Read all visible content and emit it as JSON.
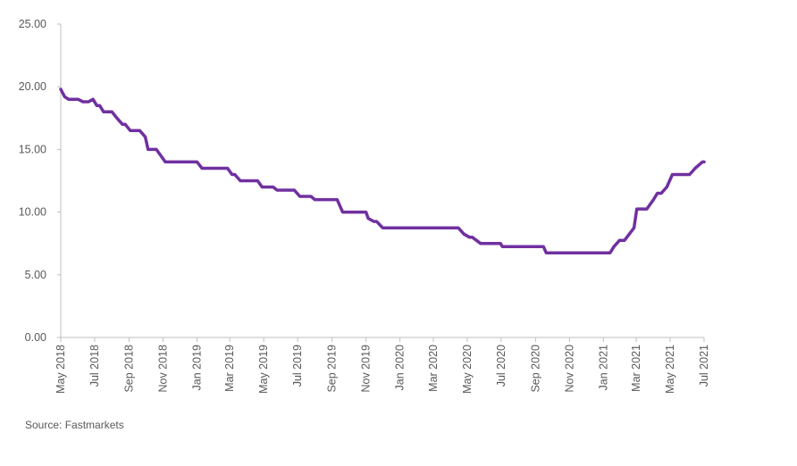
{
  "chart_data": {
    "type": "line",
    "title": "",
    "xlabel": "",
    "ylabel": "",
    "ylim": [
      0,
      25
    ],
    "y_ticks": [
      "0.00",
      "5.00",
      "10.00",
      "15.00",
      "20.00",
      "25.00"
    ],
    "x_tick_labels": [
      "May 2018",
      "Jul 2018",
      "Sep 2018",
      "Nov 2018",
      "Jan 2019",
      "Mar 2019",
      "May 2019",
      "Jul 2019",
      "Sep 2019",
      "Nov 2019",
      "Jan 2020",
      "Mar 2020",
      "May 2020",
      "Jul 2020",
      "Sep 2020",
      "Nov 2020",
      "Jan 2021",
      "Mar 2021",
      "May 2021",
      "Jul 2021"
    ],
    "grid": false,
    "line_color": "#7030a0",
    "series": [
      {
        "x": [
          "2018-05-01",
          "2018-05-08",
          "2018-05-15",
          "2018-06-01",
          "2018-06-10",
          "2018-06-20",
          "2018-06-28",
          "2018-07-05",
          "2018-07-10",
          "2018-07-17",
          "2018-07-20",
          "2018-08-01",
          "2018-08-10",
          "2018-08-20",
          "2018-08-25",
          "2018-09-03",
          "2018-09-10",
          "2018-09-20",
          "2018-09-30",
          "2018-10-05",
          "2018-10-12",
          "2018-10-20",
          "2018-10-28",
          "2018-11-05",
          "2018-11-15",
          "2018-12-01",
          "2018-12-15",
          "2019-01-01",
          "2019-01-10",
          "2019-02-01",
          "2019-02-10",
          "2019-02-25",
          "2019-03-05",
          "2019-03-10",
          "2019-03-20",
          "2019-04-10",
          "2019-04-20",
          "2019-04-28",
          "2019-05-10",
          "2019-05-18",
          "2019-05-25",
          "2019-06-20",
          "2019-06-25",
          "2019-07-05",
          "2019-07-15",
          "2019-07-25",
          "2019-08-01",
          "2019-08-20",
          "2019-09-05",
          "2019-09-10",
          "2019-09-20",
          "2019-10-25",
          "2019-11-01",
          "2019-11-05",
          "2019-11-15",
          "2019-11-20",
          "2019-12-01",
          "2019-12-10",
          "2020-01-01",
          "2020-03-01",
          "2020-04-05",
          "2020-04-15",
          "2020-04-25",
          "2020-05-05",
          "2020-05-10",
          "2020-05-25",
          "2020-06-20",
          "2020-06-30",
          "2020-07-03",
          "2020-08-15",
          "2020-09-05",
          "2020-09-15",
          "2020-09-20",
          "2020-10-01",
          "2020-11-01",
          "2020-12-01",
          "2021-01-01",
          "2021-01-13",
          "2021-01-20",
          "2021-01-30",
          "2021-02-08",
          "2021-02-25",
          "2021-03-02",
          "2021-03-05",
          "2021-03-20",
          "2021-04-01",
          "2021-04-08",
          "2021-04-15",
          "2021-04-25",
          "2021-05-05",
          "2021-05-25",
          "2021-06-05",
          "2021-06-15",
          "2021-06-28",
          "2021-07-01"
        ],
        "values": [
          19.8,
          19.2,
          19.0,
          19.0,
          18.8,
          18.8,
          19.0,
          18.5,
          18.5,
          18.0,
          18.0,
          18.0,
          17.5,
          17.0,
          17.0,
          16.5,
          16.5,
          16.5,
          16.0,
          15.0,
          15.0,
          15.0,
          14.5,
          14.0,
          14.0,
          14.0,
          14.0,
          14.0,
          13.5,
          13.5,
          13.5,
          13.5,
          13.0,
          13.0,
          12.5,
          12.5,
          12.5,
          12.0,
          12.0,
          12.0,
          11.75,
          11.75,
          11.75,
          11.25,
          11.25,
          11.25,
          11.0,
          11.0,
          11.0,
          11.0,
          10.0,
          10.0,
          10.0,
          9.5,
          9.25,
          9.25,
          8.75,
          8.75,
          8.75,
          8.75,
          8.75,
          8.75,
          8.25,
          8.0,
          8.0,
          7.5,
          7.5,
          7.5,
          7.25,
          7.25,
          7.25,
          7.25,
          6.75,
          6.75,
          6.75,
          6.75,
          6.75,
          6.75,
          7.25,
          7.75,
          7.75,
          8.75,
          10.25,
          10.25,
          10.25,
          11.0,
          11.5,
          11.5,
          12.0,
          13.0,
          13.0,
          13.0,
          13.5,
          14.0,
          14.0
        ]
      }
    ]
  },
  "source": "Source: Fastmarkets"
}
